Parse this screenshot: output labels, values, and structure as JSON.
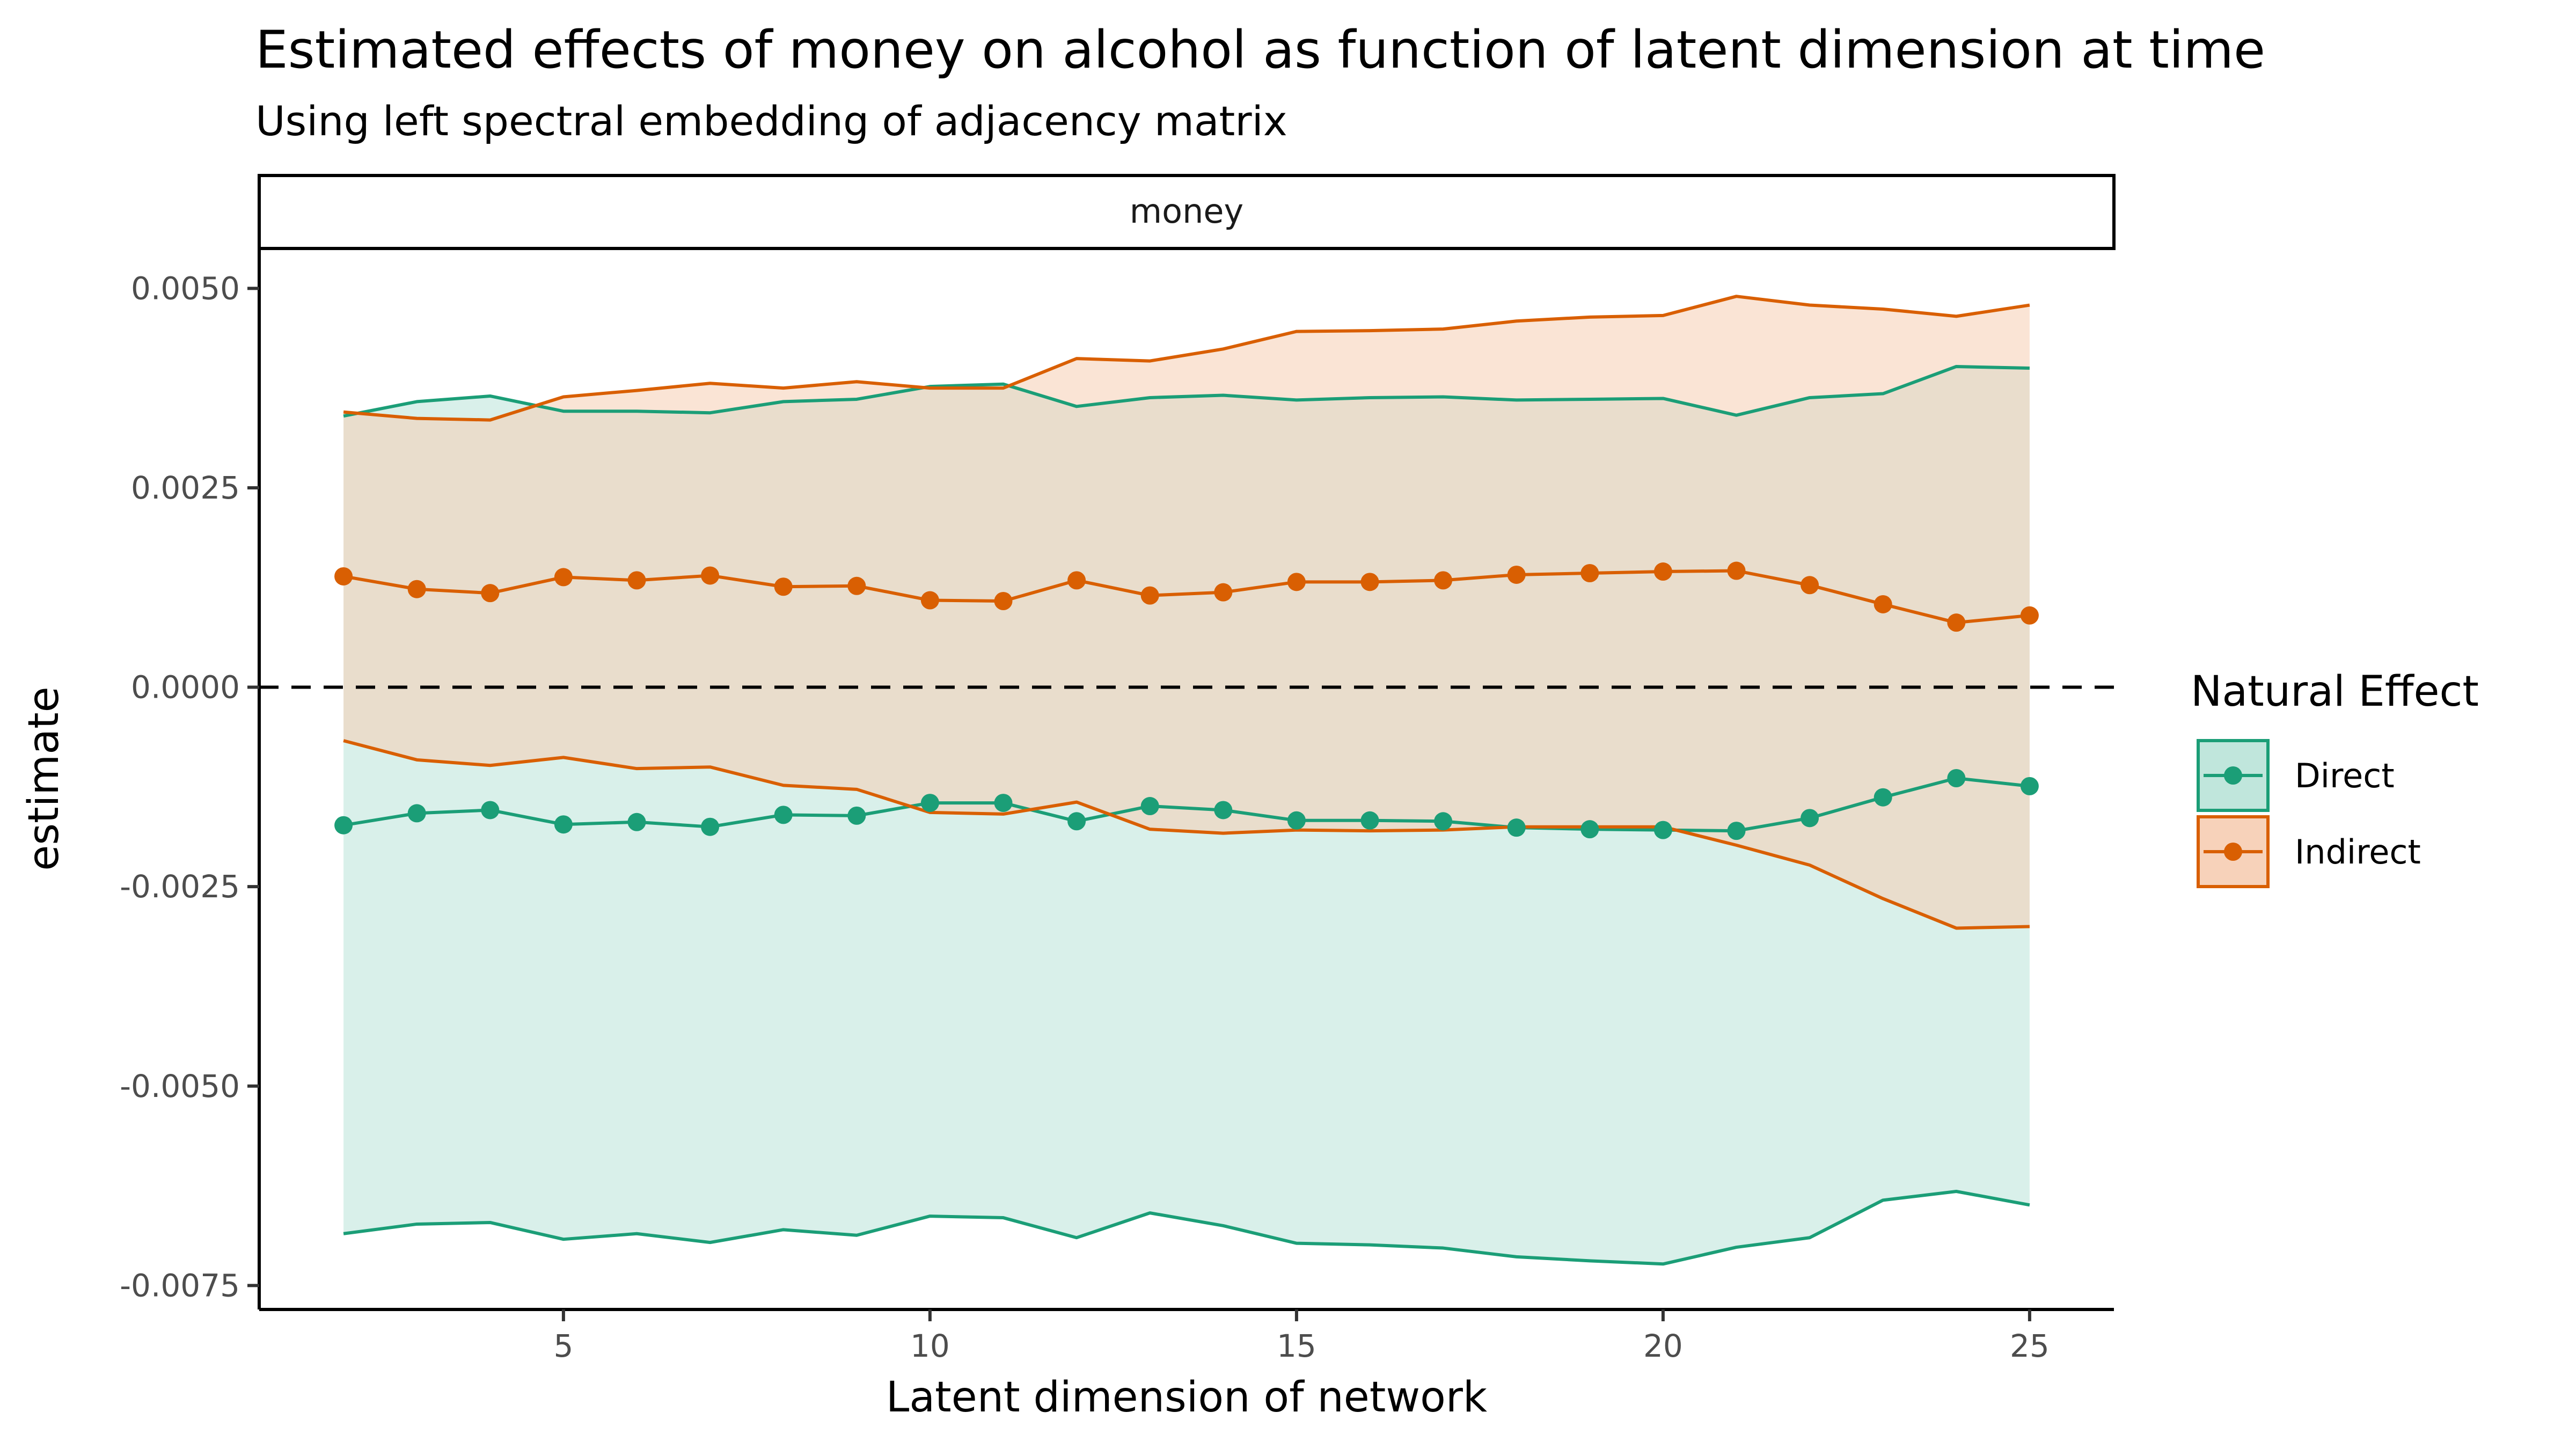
{
  "chart_data": {
    "type": "line",
    "title": "Estimated effects of money on alcohol as function of latent dimension at time",
    "subtitle": "Using left spectral embedding of  adjacency matrix",
    "facet_label": "money",
    "xlabel": "Latent dimension of network",
    "ylabel": "estimate",
    "xlim": [
      0.85,
      26.15
    ],
    "ylim": [
      -0.0078,
      0.0055
    ],
    "x_ticks": [
      5,
      10,
      15,
      20,
      25
    ],
    "y_ticks": [
      {
        "value": 0.005,
        "label": "0.0050"
      },
      {
        "value": 0.0025,
        "label": "0.0025"
      },
      {
        "value": 0.0,
        "label": "0.0000"
      },
      {
        "value": -0.0025,
        "label": "-0.0025"
      },
      {
        "value": -0.005,
        "label": "-0.0050"
      },
      {
        "value": -0.0075,
        "label": "-0.0075"
      }
    ],
    "reference_line": {
      "y": 0,
      "style": "dashed"
    },
    "grid": false,
    "legend": {
      "title": "Natural Effect",
      "position": "right"
    },
    "x": [
      2,
      3,
      4,
      5,
      6,
      7,
      8,
      9,
      10,
      11,
      12,
      13,
      14,
      15,
      16,
      17,
      18,
      19,
      20,
      21,
      22,
      23,
      24,
      25
    ],
    "series": [
      {
        "name": "Direct",
        "color": "#1b9e77",
        "fill": "#b9e3d8",
        "estimate": [
          -0.00173,
          -0.00158,
          -0.00154,
          -0.00172,
          -0.00169,
          -0.00175,
          -0.0016,
          -0.00161,
          -0.00145,
          -0.00145,
          -0.00168,
          -0.00149,
          -0.00154,
          -0.00167,
          -0.00167,
          -0.00168,
          -0.00176,
          -0.00178,
          -0.00179,
          -0.0018,
          -0.00164,
          -0.00138,
          -0.00114,
          -0.00124
        ],
        "lower": [
          -0.00685,
          -0.00673,
          -0.00671,
          -0.00692,
          -0.00685,
          -0.00696,
          -0.0068,
          -0.00687,
          -0.00663,
          -0.00665,
          -0.0069,
          -0.00659,
          -0.00675,
          -0.00697,
          -0.00699,
          -0.00703,
          -0.00714,
          -0.00719,
          -0.00723,
          -0.00702,
          -0.0069,
          -0.00643,
          -0.00632,
          -0.00649
        ],
        "upper": [
          0.0034,
          0.00358,
          0.00365,
          0.00346,
          0.00346,
          0.00344,
          0.00358,
          0.00361,
          0.00377,
          0.0038,
          0.00352,
          0.00363,
          0.00366,
          0.0036,
          0.00363,
          0.00364,
          0.0036,
          0.00361,
          0.00362,
          0.00341,
          0.00363,
          0.00368,
          0.00402,
          0.004
        ]
      },
      {
        "name": "Indirect",
        "color": "#d95f02",
        "fill": "#f6cdb2",
        "estimate": [
          0.00139,
          0.00123,
          0.00118,
          0.00138,
          0.00134,
          0.0014,
          0.00126,
          0.00127,
          0.00109,
          0.00108,
          0.00134,
          0.00115,
          0.00119,
          0.00132,
          0.00132,
          0.00134,
          0.00141,
          0.00143,
          0.00145,
          0.00146,
          0.00128,
          0.00104,
          0.00081,
          0.0009
        ],
        "lower": [
          -0.00067,
          -0.00091,
          -0.00098,
          -0.00088,
          -0.00102,
          -0.001,
          -0.00123,
          -0.00128,
          -0.00157,
          -0.00159,
          -0.00144,
          -0.00178,
          -0.00183,
          -0.00179,
          -0.0018,
          -0.00179,
          -0.00175,
          -0.00175,
          -0.00175,
          -0.00198,
          -0.00223,
          -0.00265,
          -0.00302,
          -0.003
        ],
        "upper": [
          0.00345,
          0.00337,
          0.00335,
          0.00364,
          0.00372,
          0.00381,
          0.00375,
          0.00383,
          0.00375,
          0.00375,
          0.00412,
          0.00409,
          0.00424,
          0.00446,
          0.00447,
          0.00449,
          0.00459,
          0.00464,
          0.00466,
          0.0049,
          0.00479,
          0.00474,
          0.00465,
          0.00479
        ]
      }
    ]
  }
}
